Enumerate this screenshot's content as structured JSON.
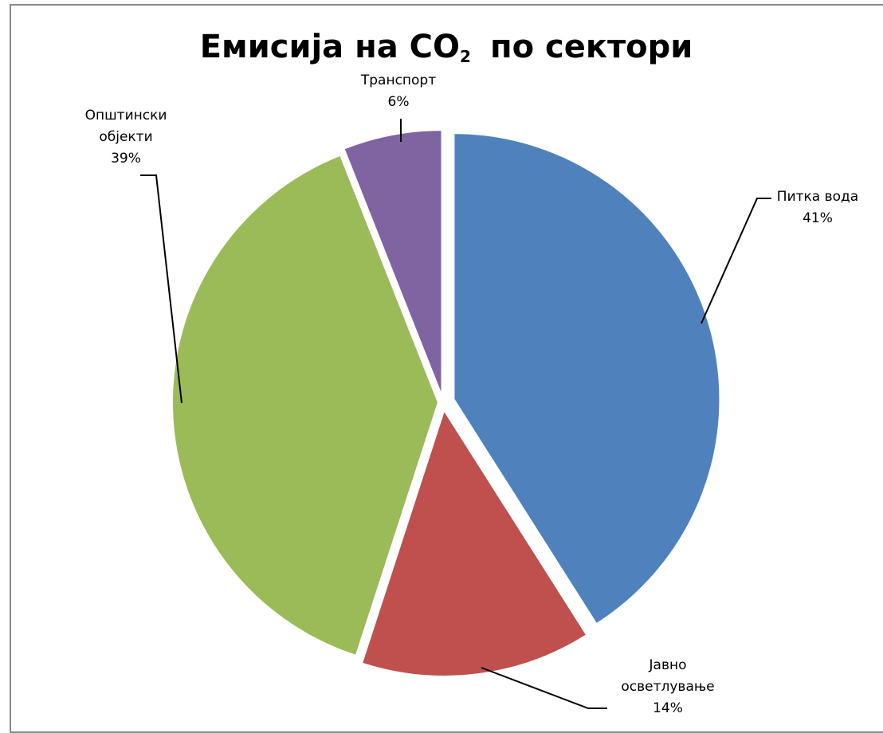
{
  "chart_data": {
    "type": "pie",
    "title": "Емисија на CO",
    "title_subscript": "2",
    "title_suffix": "по сектори",
    "slices": [
      {
        "label_lines": [
          "Питка вода"
        ],
        "percent_label": "41%",
        "value": 41,
        "color": "#4f81bd"
      },
      {
        "label_lines": [
          "Јавно",
          "осветлување"
        ],
        "percent_label": "14%",
        "value": 14,
        "color": "#c0504d"
      },
      {
        "label_lines": [
          "Општински",
          "објекти"
        ],
        "percent_label": "39%",
        "value": 39,
        "color": "#9bbb59"
      },
      {
        "label_lines": [
          "Транспорт"
        ],
        "percent_label": "6%",
        "value": 6,
        "color": "#8064a2"
      }
    ],
    "start_angle_deg": 0,
    "direction": "clockwise",
    "exploded": true,
    "legend": "none"
  }
}
